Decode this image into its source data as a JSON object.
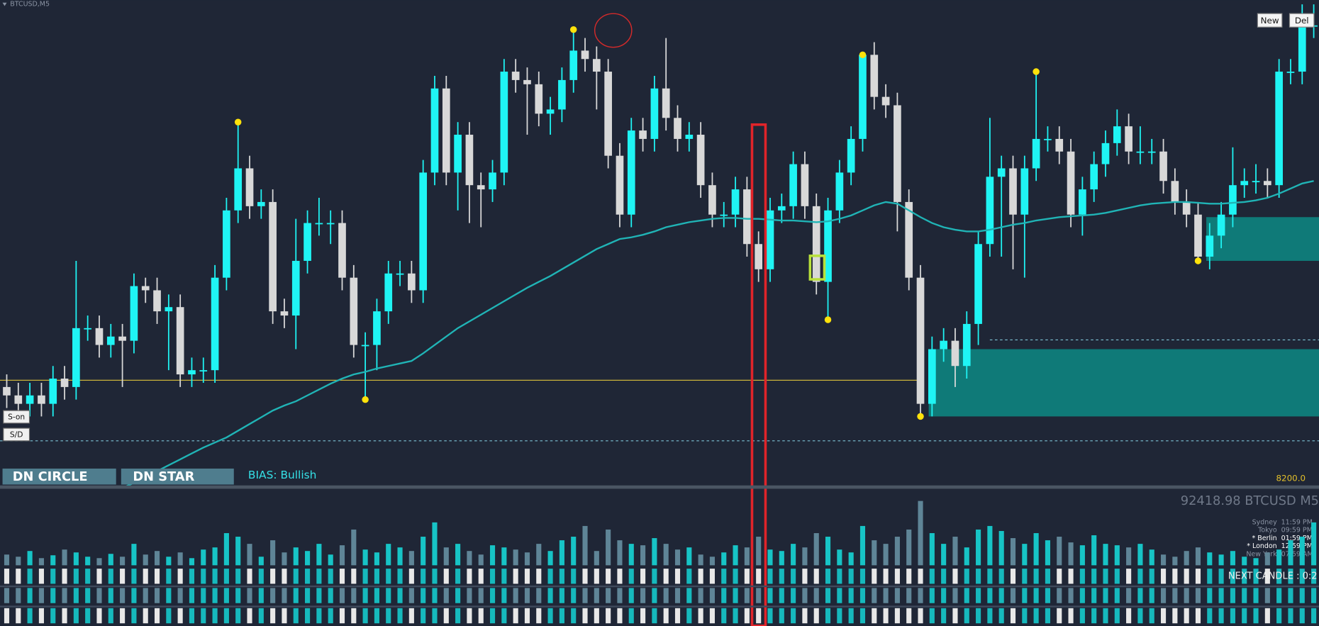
{
  "chart_data": {
    "type": "candlestick",
    "title": "BTCUSD,M5",
    "open": [
      92120,
      92110,
      92100,
      92110,
      92100,
      92130,
      92120,
      92190,
      92190,
      92170,
      92180,
      92175,
      92240,
      92235,
      92210,
      92215,
      92135,
      92140,
      92140,
      92250,
      92330,
      92380,
      92335,
      92340,
      92210,
      92205,
      92270,
      92315,
      92315,
      92315,
      92250,
      92170,
      92170,
      92210,
      92255,
      92255,
      92235,
      92375,
      92475,
      92375,
      92420,
      92360,
      92355,
      92375,
      92495,
      92485,
      92480,
      92445,
      92450,
      92485,
      92520,
      92510,
      92495,
      92395,
      92325,
      92425,
      92415,
      92475,
      92440,
      92415,
      92420,
      92360,
      92325,
      92325,
      92355,
      92290,
      92260,
      92330,
      92335,
      92385,
      92335,
      92245,
      92330,
      92375,
      92415,
      92515,
      92465,
      92455,
      92340,
      92250,
      92100,
      92165,
      92175,
      92145,
      92195,
      92290,
      92370,
      92380,
      92325,
      92380,
      92415,
      92415,
      92400,
      92325,
      92355,
      92385,
      92410,
      92430,
      92400,
      92400,
      92400,
      92365,
      92340,
      92325,
      92275,
      92300,
      92325,
      92360,
      92365,
      92365,
      92360,
      92495,
      92495,
      92550
    ],
    "high": [
      92135,
      92125,
      92125,
      92125,
      92145,
      92145,
      92270,
      92205,
      92205,
      92195,
      92195,
      92255,
      92250,
      92250,
      92230,
      92230,
      92155,
      92155,
      92265,
      92345,
      92435,
      92395,
      92355,
      92355,
      92225,
      92320,
      92330,
      92345,
      92330,
      92330,
      92265,
      92185,
      92225,
      92270,
      92270,
      92270,
      92390,
      92490,
      92490,
      92435,
      92435,
      92375,
      92390,
      92510,
      92510,
      92500,
      92495,
      92465,
      92500,
      92545,
      92535,
      92525,
      92510,
      92410,
      92440,
      92440,
      92490,
      92535,
      92455,
      92435,
      92435,
      92375,
      92340,
      92370,
      92370,
      92305,
      92345,
      92350,
      92400,
      92400,
      92350,
      92345,
      92390,
      92430,
      92515,
      92530,
      92480,
      92470,
      92355,
      92265,
      92180,
      92190,
      92190,
      92210,
      92305,
      92440,
      92395,
      92395,
      92395,
      92495,
      92430,
      92430,
      92415,
      92370,
      92400,
      92425,
      92450,
      92445,
      92430,
      92415,
      92415,
      92380,
      92355,
      92340,
      92315,
      92340,
      92405,
      92380,
      92385,
      92380,
      92510,
      92510,
      92575,
      92575
    ],
    "low": [
      92095,
      92085,
      92085,
      92085,
      92085,
      92105,
      92105,
      92175,
      92155,
      92155,
      92120,
      92160,
      92220,
      92195,
      92140,
      92120,
      92120,
      92125,
      92125,
      92235,
      92315,
      92320,
      92320,
      92195,
      92190,
      92165,
      92255,
      92300,
      92290,
      92235,
      92155,
      92105,
      92140,
      92195,
      92240,
      92220,
      92220,
      92360,
      92360,
      92330,
      92315,
      92310,
      92340,
      92360,
      92470,
      92420,
      92430,
      92420,
      92435,
      92470,
      92495,
      92450,
      92380,
      92310,
      92310,
      92400,
      92400,
      92425,
      92400,
      92400,
      92345,
      92310,
      92310,
      92310,
      92275,
      92245,
      92245,
      92315,
      92320,
      92320,
      92230,
      92200,
      92315,
      92360,
      92400,
      92450,
      92440,
      92305,
      92235,
      92085,
      92085,
      92150,
      92120,
      92130,
      92170,
      92275,
      92275,
      92260,
      92250,
      92365,
      92400,
      92385,
      92310,
      92300,
      92340,
      92370,
      92395,
      92385,
      92385,
      92385,
      92350,
      92325,
      92310,
      92270,
      92260,
      92285,
      92310,
      92345,
      92350,
      92345,
      92345,
      92480,
      92480,
      92535
    ],
    "close": [
      92110,
      92100,
      92110,
      92100,
      92130,
      92120,
      92190,
      92190,
      92170,
      92180,
      92175,
      92240,
      92235,
      92210,
      92215,
      92135,
      92140,
      92140,
      92250,
      92330,
      92380,
      92335,
      92340,
      92210,
      92205,
      92270,
      92315,
      92315,
      92315,
      92250,
      92170,
      92170,
      92210,
      92255,
      92255,
      92235,
      92375,
      92475,
      92375,
      92420,
      92360,
      92355,
      92375,
      92495,
      92485,
      92480,
      92445,
      92450,
      92485,
      92520,
      92510,
      92495,
      92395,
      92325,
      92425,
      92415,
      92475,
      92440,
      92415,
      92420,
      92360,
      92325,
      92325,
      92355,
      92290,
      92260,
      92330,
      92335,
      92385,
      92335,
      92245,
      92330,
      92375,
      92415,
      92515,
      92465,
      92455,
      92340,
      92250,
      92100,
      92165,
      92175,
      92145,
      92195,
      92290,
      92370,
      92380,
      92325,
      92380,
      92415,
      92415,
      92400,
      92325,
      92355,
      92385,
      92410,
      92430,
      92400,
      92400,
      92400,
      92365,
      92340,
      92325,
      92275,
      92300,
      92325,
      92360,
      92365,
      92365,
      92360,
      92495,
      92495,
      92550,
      92550
    ],
    "ylim": [
      92002,
      92580
    ],
    "colors": {
      "up": "#1ff4f4",
      "down": "#d8d8d8"
    },
    "ma": {
      "color": "#20b4b6",
      "values": [
        null,
        null,
        null,
        null,
        null,
        null,
        null,
        null,
        null,
        null,
        92000,
        92006,
        92013,
        92020,
        92027,
        92034,
        92041,
        92048,
        92054,
        92060,
        92068,
        92076,
        92084,
        92092,
        92098,
        92103,
        92110,
        92117,
        92124,
        92130,
        92135,
        92138,
        92142,
        92145,
        92148,
        92151,
        92160,
        92170,
        92180,
        92190,
        92198,
        92206,
        92214,
        92222,
        92230,
        92238,
        92245,
        92252,
        92260,
        92268,
        92276,
        92284,
        92290,
        92296,
        92298,
        92301,
        92305,
        92310,
        92313,
        92316,
        92318,
        92320,
        92321,
        92321,
        92320,
        92320,
        92319,
        92318,
        92318,
        92317,
        92316,
        92317,
        92320,
        92324,
        92330,
        92336,
        92340,
        92338,
        92330,
        92322,
        92315,
        92310,
        92307,
        92305,
        92305,
        92307,
        92310,
        92313,
        92315,
        92318,
        92320,
        92322,
        92323,
        92324,
        92325,
        92327,
        92330,
        92333,
        92336,
        92338,
        92339,
        92340,
        92340,
        92339,
        92338,
        92338,
        92339,
        92340,
        92342,
        92345,
        92350,
        92356,
        92362,
        92365
      ]
    },
    "markers": {
      "color": "#ffe20a",
      "x": [
        20,
        31,
        49,
        71,
        74,
        79,
        89,
        103
      ],
      "values": [
        92435,
        92105,
        92545,
        92200,
        92515,
        92085,
        92495,
        92270
      ]
    },
    "levels": [
      {
        "value": 92128,
        "to": 79,
        "color": "#c9b23a",
        "style": "solid"
      },
      {
        "value": 92056,
        "color": "#7fc4d6",
        "style": "dashed"
      },
      {
        "value": 92176,
        "from": 85,
        "color": "#7fc4d6",
        "style": "dashed"
      }
    ],
    "zones": {
      "color": "#0f7a78",
      "items": [
        {
          "from": 80,
          "top": 92165,
          "bottom": 92085
        },
        {
          "from": 104,
          "top": 92322,
          "bottom": 92270
        }
      ]
    },
    "volume": {
      "ylim": [
        0,
        100
      ],
      "up_color": "#17c4c6",
      "down_color": "#5f8597",
      "values": [
        15,
        12,
        20,
        10,
        14,
        22,
        18,
        12,
        10,
        16,
        12,
        30,
        15,
        20,
        12,
        18,
        10,
        22,
        25,
        45,
        40,
        30,
        12,
        35,
        18,
        25,
        20,
        30,
        15,
        28,
        50,
        22,
        18,
        30,
        25,
        20,
        40,
        60,
        25,
        30,
        20,
        15,
        28,
        25,
        22,
        18,
        30,
        20,
        35,
        40,
        55,
        20,
        50,
        35,
        30,
        28,
        38,
        30,
        22,
        25,
        15,
        12,
        18,
        28,
        25,
        40,
        22,
        20,
        30,
        25,
        45,
        40,
        22,
        18,
        55,
        35,
        30,
        40,
        50,
        90,
        45,
        30,
        40,
        25,
        50,
        55,
        48,
        38,
        30,
        45,
        35,
        40,
        32,
        28,
        42,
        30,
        28,
        25,
        30,
        22,
        15,
        12,
        20,
        25,
        18,
        15,
        20,
        12,
        10,
        18,
        22,
        35,
        40,
        60
      ]
    },
    "strip_colors": {
      "up": "#16b9bd",
      "down": "#e8e8e8"
    },
    "price_label": "92418.98 BTCUSD M5",
    "level_label": "8200.0"
  },
  "ui": {
    "buttons": [
      "New",
      "Del"
    ],
    "side_buttons": [
      "S-on",
      "S/D"
    ],
    "panels": [
      "DN CIRCLE",
      "DN STAR"
    ],
    "bias": "BIAS: Bullish",
    "sessions": [
      {
        "city": "Sydney",
        "time": "11:59 PM"
      },
      {
        "city": "Tokyo",
        "time": "09:59 PM"
      },
      {
        "city": "* Berlin",
        "time": "01:59 PM"
      },
      {
        "city": "* London",
        "time": "12:59 PM"
      },
      {
        "city": "New York",
        "time": "07:59 AM"
      }
    ],
    "next_candle": "NEXT CANDLE : 0:2"
  }
}
